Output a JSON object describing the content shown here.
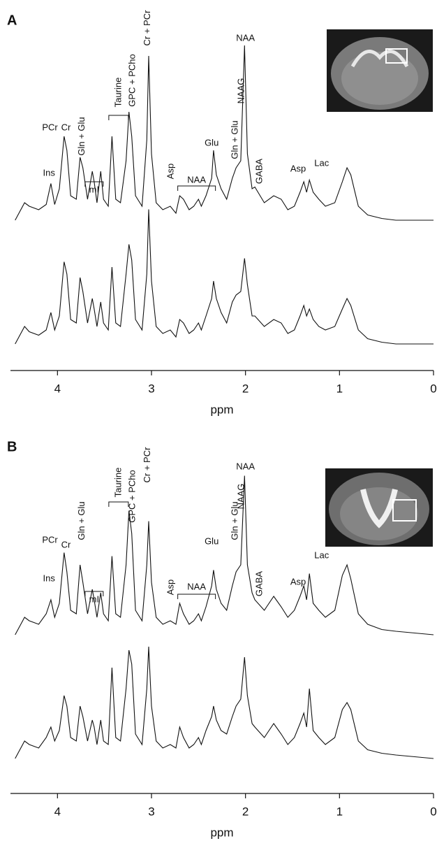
{
  "chart_data": [
    {
      "type": "line",
      "label": "A",
      "x_label": "ppm",
      "xlim": [
        4.5,
        0
      ],
      "xticks": [
        4,
        3,
        2,
        1,
        0
      ],
      "color": "#111111",
      "x": [
        4.45,
        4.35,
        4.3,
        4.2,
        4.12,
        4.07,
        4.03,
        3.98,
        3.93,
        3.9,
        3.86,
        3.8,
        3.76,
        3.73,
        3.68,
        3.63,
        3.61,
        3.58,
        3.54,
        3.51,
        3.46,
        3.42,
        3.38,
        3.33,
        3.27,
        3.24,
        3.21,
        3.17,
        3.1,
        3.05,
        3.03,
        3.0,
        2.95,
        2.88,
        2.8,
        2.74,
        2.7,
        2.66,
        2.6,
        2.55,
        2.5,
        2.47,
        2.42,
        2.36,
        2.34,
        2.31,
        2.26,
        2.2,
        2.14,
        2.1,
        2.05,
        2.01,
        1.98,
        1.93,
        1.9,
        1.8,
        1.7,
        1.62,
        1.55,
        1.48,
        1.42,
        1.38,
        1.35,
        1.32,
        1.28,
        1.22,
        1.15,
        1.05,
        0.97,
        0.92,
        0.88,
        0.8,
        0.7,
        0.55,
        0.4,
        0.2,
        0.0
      ],
      "series": [
        {
          "values": [
            0,
            10,
            8,
            6,
            9,
            21,
            9,
            18,
            48,
            40,
            14,
            12,
            36,
            30,
            12,
            28,
            22,
            10,
            28,
            12,
            8,
            48,
            12,
            10,
            34,
            62,
            48,
            14,
            8,
            46,
            94,
            38,
            10,
            6,
            8,
            4,
            14,
            12,
            6,
            8,
            12,
            8,
            14,
            24,
            40,
            26,
            18,
            12,
            24,
            30,
            34,
            100,
            38,
            18,
            19,
            10,
            14,
            12,
            6,
            8,
            16,
            22,
            16,
            23,
            16,
            12,
            8,
            10,
            22,
            30,
            26,
            8,
            3,
            1,
            0,
            0,
            0
          ]
        },
        {
          "values": [
            0,
            10,
            7,
            5,
            8,
            18,
            8,
            16,
            47,
            40,
            14,
            12,
            38,
            30,
            12,
            26,
            20,
            10,
            24,
            12,
            8,
            44,
            12,
            10,
            40,
            57,
            48,
            14,
            8,
            40,
            77,
            36,
            10,
            6,
            8,
            4,
            14,
            12,
            6,
            8,
            12,
            8,
            16,
            26,
            36,
            26,
            18,
            12,
            24,
            28,
            30,
            49,
            34,
            16,
            16,
            10,
            14,
            12,
            6,
            8,
            16,
            22,
            16,
            20,
            14,
            10,
            8,
            10,
            20,
            26,
            22,
            8,
            3,
            1,
            0,
            0,
            0
          ]
        }
      ],
      "annotations": [
        {
          "text": "PCr",
          "x": 4.08
        },
        {
          "text": "Cr",
          "x": 3.91
        },
        {
          "text": "Gln + Glu",
          "x": 3.74
        },
        {
          "text": "Ins",
          "x": 4.09
        },
        {
          "text": "mI",
          "x": 3.61
        },
        {
          "text": "Taurine",
          "x": 3.35
        },
        {
          "text": "GPC + PCho",
          "x": 3.2
        },
        {
          "text": "Cr + PCr",
          "x": 3.04
        },
        {
          "text": "Asp",
          "x": 2.79
        },
        {
          "text": "NAA",
          "x": 2.52
        },
        {
          "text": "Glu",
          "x": 2.36
        },
        {
          "text": "Gln + Glu",
          "x": 2.11
        },
        {
          "text": "NAAG",
          "x": 2.04
        },
        {
          "text": "NAA",
          "x": 2.0
        },
        {
          "text": "GABA",
          "x": 1.85
        },
        {
          "text": "Asp",
          "x": 1.44
        },
        {
          "text": "Lac",
          "x": 1.19
        }
      ]
    },
    {
      "type": "line",
      "label": "B",
      "x_label": "ppm",
      "xlim": [
        4.5,
        0
      ],
      "xticks": [
        4,
        3,
        2,
        1,
        0
      ],
      "color": "#111111",
      "x": [
        4.45,
        4.35,
        4.3,
        4.2,
        4.12,
        4.07,
        4.03,
        3.98,
        3.93,
        3.9,
        3.86,
        3.8,
        3.76,
        3.73,
        3.68,
        3.63,
        3.61,
        3.58,
        3.54,
        3.51,
        3.46,
        3.42,
        3.38,
        3.33,
        3.27,
        3.24,
        3.21,
        3.17,
        3.1,
        3.05,
        3.03,
        3.0,
        2.95,
        2.88,
        2.8,
        2.74,
        2.7,
        2.66,
        2.6,
        2.55,
        2.5,
        2.47,
        2.42,
        2.36,
        2.34,
        2.31,
        2.26,
        2.2,
        2.14,
        2.1,
        2.05,
        2.01,
        1.98,
        1.93,
        1.9,
        1.8,
        1.7,
        1.62,
        1.55,
        1.48,
        1.42,
        1.38,
        1.35,
        1.32,
        1.28,
        1.22,
        1.15,
        1.05,
        0.97,
        0.92,
        0.88,
        0.8,
        0.7,
        0.55,
        0.4,
        0.2,
        0.0
      ],
      "series": [
        {
          "values": [
            0,
            10,
            8,
            6,
            12,
            20,
            10,
            18,
            47,
            36,
            14,
            12,
            40,
            30,
            12,
            26,
            20,
            10,
            24,
            12,
            8,
            45,
            12,
            10,
            40,
            71,
            58,
            14,
            8,
            40,
            65,
            30,
            10,
            6,
            8,
            6,
            18,
            12,
            6,
            8,
            12,
            8,
            16,
            28,
            37,
            26,
            18,
            14,
            28,
            36,
            40,
            91,
            40,
            24,
            20,
            14,
            22,
            16,
            10,
            14,
            22,
            28,
            20,
            35,
            18,
            14,
            10,
            14,
            34,
            40,
            32,
            12,
            6,
            3,
            2,
            1,
            0
          ]
        },
        {
          "values": [
            0,
            10,
            8,
            6,
            12,
            18,
            10,
            16,
            36,
            30,
            12,
            10,
            30,
            24,
            10,
            22,
            18,
            8,
            22,
            10,
            8,
            52,
            12,
            10,
            40,
            62,
            54,
            14,
            8,
            40,
            64,
            30,
            10,
            6,
            8,
            6,
            18,
            12,
            6,
            8,
            12,
            8,
            16,
            24,
            30,
            22,
            16,
            14,
            24,
            30,
            34,
            58,
            36,
            20,
            18,
            12,
            20,
            14,
            8,
            12,
            20,
            26,
            18,
            40,
            16,
            12,
            8,
            12,
            28,
            32,
            28,
            10,
            5,
            3,
            2,
            1,
            0
          ]
        }
      ],
      "annotations": [
        {
          "text": "PCr",
          "x": 4.08
        },
        {
          "text": "Cr",
          "x": 3.91
        },
        {
          "text": "Gln + Glu",
          "x": 3.74
        },
        {
          "text": "Ins",
          "x": 4.09
        },
        {
          "text": "mI",
          "x": 3.61
        },
        {
          "text": "Taurine",
          "x": 3.35
        },
        {
          "text": "GPC + PCho",
          "x": 3.2
        },
        {
          "text": "Cr + PCr",
          "x": 3.04
        },
        {
          "text": "Asp",
          "x": 2.79
        },
        {
          "text": "NAA",
          "x": 2.52
        },
        {
          "text": "Glu",
          "x": 2.36
        },
        {
          "text": "Gln + Glu",
          "x": 2.11
        },
        {
          "text": "NAAG",
          "x": 2.04
        },
        {
          "text": "NAA",
          "x": 2.0
        },
        {
          "text": "GABA",
          "x": 1.85
        },
        {
          "text": "Asp",
          "x": 1.44
        },
        {
          "text": "Lac",
          "x": 1.19
        }
      ]
    }
  ]
}
